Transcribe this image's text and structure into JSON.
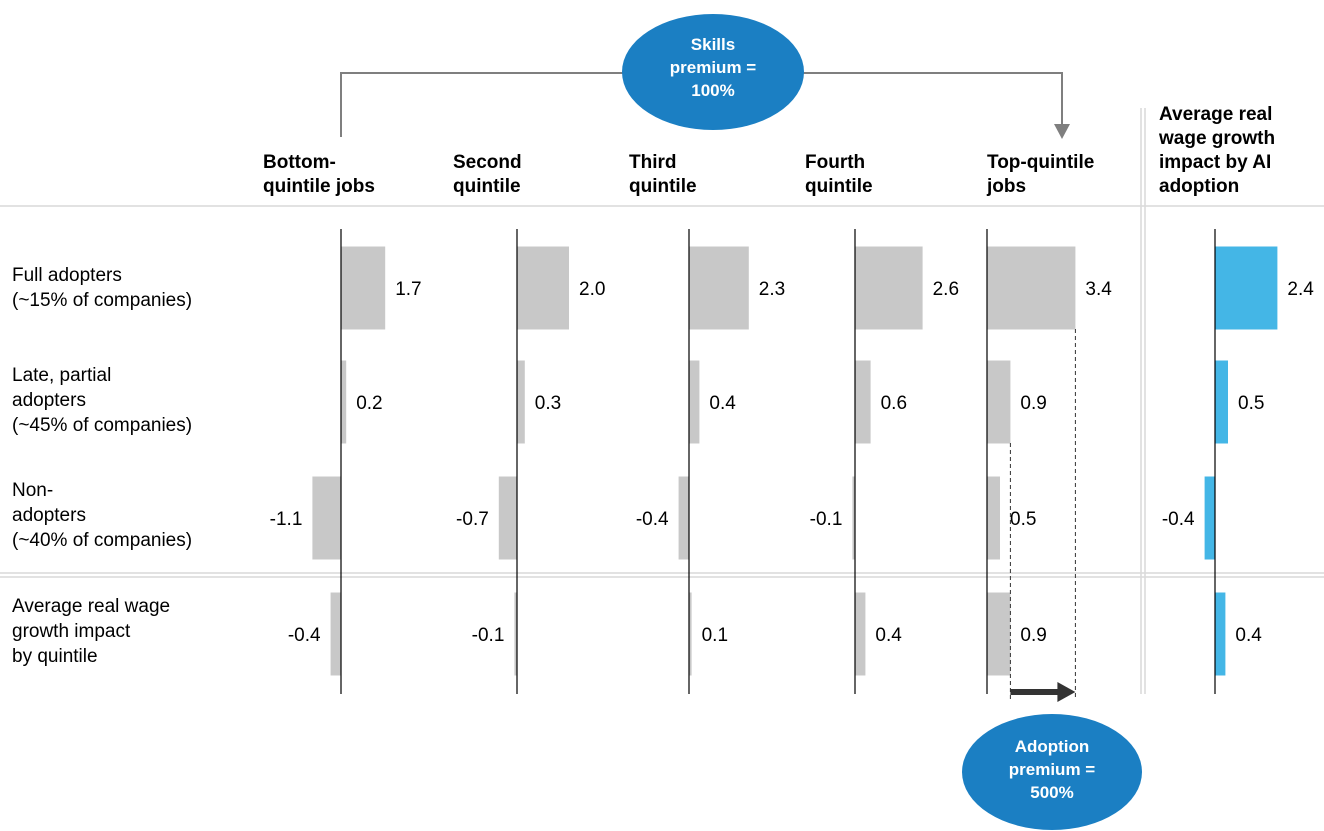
{
  "chart_data": {
    "type": "bar",
    "orientation": "horizontal",
    "columns": [
      {
        "header": [
          "Bottom-",
          "quintile jobs"
        ],
        "values": [
          1.7,
          0.2,
          -1.1,
          -0.4
        ],
        "labels": [
          "1.7",
          "0.2",
          "-1.1",
          "-0.4"
        ]
      },
      {
        "header": [
          "Second",
          "quintile"
        ],
        "values": [
          2.0,
          0.3,
          -0.7,
          -0.1
        ],
        "labels": [
          "2.0",
          "0.3",
          "-0.7",
          "-0.1"
        ]
      },
      {
        "header": [
          "Third",
          "quintile"
        ],
        "values": [
          2.3,
          0.4,
          -0.4,
          0.1
        ],
        "labels": [
          "2.3",
          "0.4",
          "-0.4",
          "0.1"
        ]
      },
      {
        "header": [
          "Fourth",
          "quintile"
        ],
        "values": [
          2.6,
          0.6,
          -0.1,
          0.4
        ],
        "labels": [
          "2.6",
          "0.6",
          "-0.1",
          "0.4"
        ]
      },
      {
        "header": [
          "Top-quintile",
          "jobs"
        ],
        "values": [
          3.4,
          0.9,
          0.5,
          0.9
        ],
        "labels": [
          "3.4",
          "0.9",
          "0.5",
          "0.9"
        ]
      },
      {
        "header": [
          "Average real",
          "wage growth",
          "impact by AI",
          "adoption"
        ],
        "values": [
          2.4,
          0.5,
          -0.4,
          0.4
        ],
        "labels": [
          "2.4",
          "0.5",
          "-0.4",
          "0.4"
        ],
        "highlight": true
      }
    ],
    "rows": [
      [
        "Full adopters",
        "(~15% of companies)"
      ],
      [
        "Late, partial",
        "adopters",
        "(~45% of companies)"
      ],
      [
        "Non-",
        "adopters",
        "(~40% of companies)"
      ],
      [
        "Average real wage",
        "growth impact",
        "by quintile"
      ]
    ],
    "annotations": {
      "skills_premium": [
        "Skills",
        "premium =",
        "100%"
      ],
      "adoption_premium": [
        "Adoption",
        "premium =",
        "500%"
      ]
    },
    "colors": {
      "bar": "#c8c8c8",
      "highlight_bar": "#44b6e6",
      "bubble": "#1b7fc3",
      "arrow": "#333333",
      "connector": "#7f7f7f",
      "rule": "#d9d9d9"
    }
  }
}
